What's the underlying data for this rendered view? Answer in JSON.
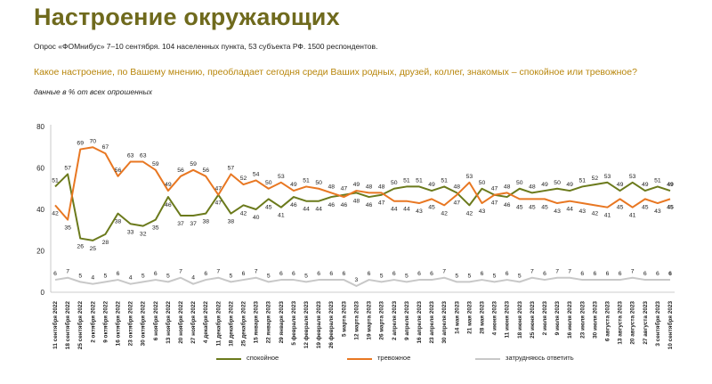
{
  "header": {
    "title": "Настроение окружающих",
    "subtitle": "Опрос «ФОМнибус» 7–10 сентября. 104 населенных пункта, 53 субъекта РФ. 1500 респондентов.",
    "question": "Какое настроение, по Вашему мнению, преобладает сегодня среди Ваших родных, друзей, коллег, знакомых – спокойное или тревожное?",
    "note": "данные в % от всех опрошенных"
  },
  "colors": {
    "calm": "#6b7a1c",
    "anxious": "#e87722",
    "undecided": "#c8c8c8"
  },
  "chart_data": {
    "type": "line",
    "ylim": [
      0,
      80
    ],
    "yticks": [
      0,
      20,
      40,
      60,
      80
    ],
    "grid": false,
    "legend": "bottom",
    "categories": [
      "11 сентября 2022",
      "18 сентября 2022",
      "25 сентября 2022",
      "2 октября 2022",
      "9 октября 2022",
      "16 октября 2022",
      "23 октября 2022",
      "30 октября 2022",
      "6 ноября 2022",
      "13 ноября 2022",
      "20 ноября 2022",
      "27 ноября 2022",
      "4 декабря 2022",
      "11 декабря 2022",
      "18 декабря 2022",
      "25 декабря 2022",
      "15 января 2023",
      "22 января 2023",
      "29 января 2023",
      "5 февраля 2023",
      "12 февраля 2023",
      "19 февраля 2023",
      "26 февраля 2023",
      "5 марта 2023",
      "12 марта 2023",
      "19 марта 2023",
      "26 марта 2023",
      "2 апреля 2023",
      "9 апреля 2023",
      "16 апреля 2023",
      "23 апреля 2023",
      "30 апреля 2023",
      "14 мая 2023",
      "21 мая 2023",
      "28 мая 2023",
      "4 июня 2023",
      "11 июня 2023",
      "18 июня 2023",
      "25 июня 2023",
      "2 июля 2023",
      "9 июля 2023",
      "16 июля 2023",
      "23 июля 2023",
      "30 июля 2023",
      "6 августа 2023",
      "13 августа 2023",
      "20 августа 2023",
      "27 августа 2023",
      "3 сентября 2023",
      "10 сентября 2023"
    ],
    "series": [
      {
        "name": "спокойное",
        "key": "calm",
        "values": [
          51,
          57,
          26,
          25,
          28,
          38,
          33,
          32,
          35,
          46,
          37,
          37,
          38,
          47,
          38,
          42,
          40,
          45,
          41,
          46,
          44,
          44,
          46,
          47,
          48,
          46,
          47,
          50,
          51,
          51,
          49,
          51,
          48,
          42,
          50,
          47,
          46,
          50,
          48,
          49,
          50,
          49,
          51,
          52,
          53,
          49,
          53,
          49,
          51,
          49
        ]
      },
      {
        "name": "тревожное",
        "key": "anxious",
        "values": [
          42,
          35,
          69,
          70,
          67,
          56,
          63,
          63,
          59,
          49,
          56,
          59,
          56,
          47,
          57,
          52,
          54,
          50,
          53,
          49,
          51,
          50,
          48,
          46,
          49,
          48,
          48,
          44,
          44,
          43,
          45,
          42,
          47,
          53,
          43,
          47,
          48,
          45,
          45,
          45,
          43,
          44,
          43,
          42,
          41,
          45,
          41,
          45,
          43,
          45
        ]
      },
      {
        "name": "затрудняюсь ответить",
        "key": "undecided",
        "values": [
          6,
          7,
          5,
          4,
          5,
          6,
          4,
          5,
          6,
          5,
          7,
          4,
          6,
          7,
          5,
          6,
          7,
          5,
          6,
          6,
          5,
          6,
          6,
          6,
          3,
          6,
          5,
          6,
          5,
          6,
          6,
          7,
          5,
          5,
          6,
          5,
          6,
          5,
          7,
          6,
          7,
          7,
          6,
          6,
          6,
          6,
          7,
          6,
          6,
          6
        ]
      }
    ],
    "bold_last_labels": true
  }
}
